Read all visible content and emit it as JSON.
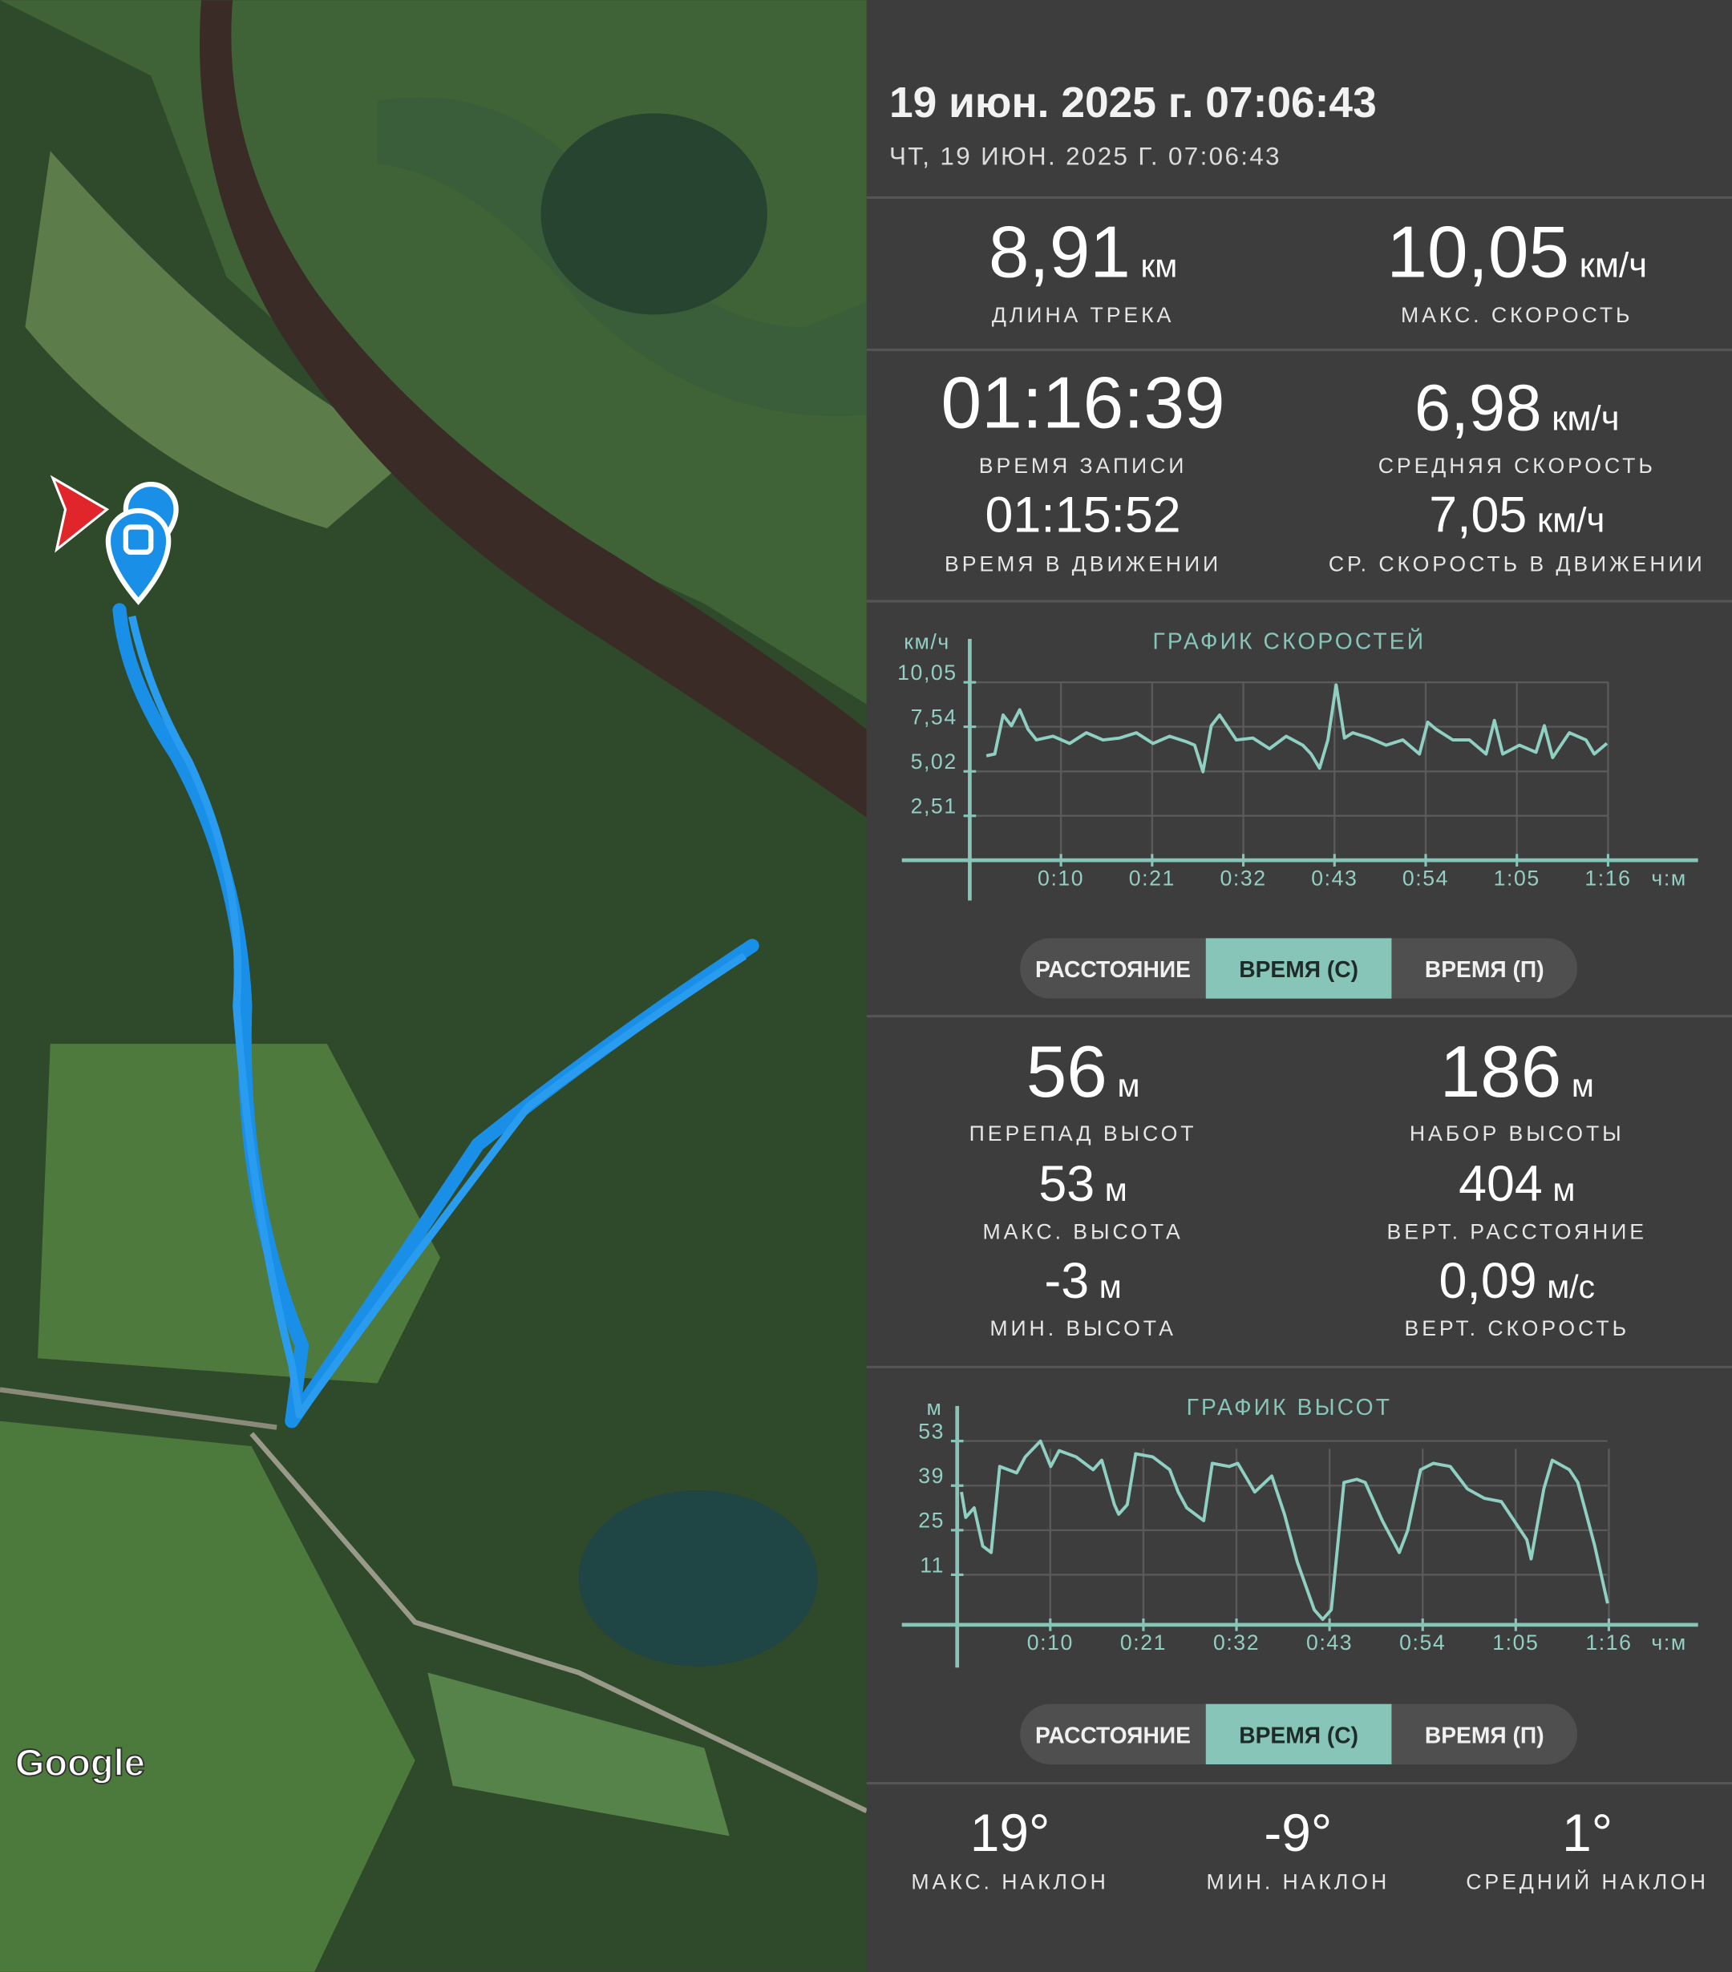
{
  "header": {
    "title": "19 июн. 2025 г. 07:06:43",
    "subtitle": "ЧТ, 19 ИЮН. 2025 Г. 07:06:43"
  },
  "map": {
    "attribution": "Google"
  },
  "track_stats": [
    {
      "value": "8,91",
      "unit": "км",
      "label": "ДЛИНА ТРЕКА"
    },
    {
      "value": "10,05",
      "unit": "км/ч",
      "label": "МАКС. СКОРОСТЬ"
    },
    {
      "value": "01:16:39",
      "label": "ВРЕМЯ ЗАПИСИ"
    },
    {
      "value": "6,98",
      "unit": "км/ч",
      "label": "СРЕДНЯЯ СКОРОСТЬ"
    },
    {
      "value": "01:15:52",
      "label": "ВРЕМЯ В ДВИЖЕНИИ"
    },
    {
      "value": "7,05",
      "unit": "км/ч",
      "label": "СР. СКОРОСТЬ В ДВИЖЕНИИ"
    }
  ],
  "speed_tabs": {
    "options": [
      "РАССТОЯНИЕ",
      "ВРЕМЯ (С)",
      "ВРЕМЯ (П)"
    ],
    "selected": 1
  },
  "elevation_stats": [
    {
      "value": "56",
      "unit": "м",
      "label": "ПЕРЕПАД ВЫСОТ"
    },
    {
      "value": "186",
      "unit": "м",
      "label": "НАБОР ВЫСОТЫ"
    },
    {
      "value": "53",
      "unit": "м",
      "label": "МАКС. ВЫСОТА"
    },
    {
      "value": "404",
      "unit": "м",
      "label": "ВЕРТ. РАССТОЯНИЕ"
    },
    {
      "value": "-3",
      "unit": "м",
      "label": "МИН. ВЫСОТА"
    },
    {
      "value": "0,09",
      "unit": "м/с",
      "label": "ВЕРТ. СКОРОСТЬ"
    }
  ],
  "elevation_tabs": {
    "options": [
      "РАССТОЯНИЕ",
      "ВРЕМЯ (С)",
      "ВРЕМЯ (П)"
    ],
    "selected": 1
  },
  "slope_stats": [
    {
      "value": "19°",
      "label": "МАКС. НАКЛОН"
    },
    {
      "value": "-9°",
      "label": "МИН. НАКЛОН"
    },
    {
      "value": "1°",
      "label": "СРЕДНИЙ НАКЛОН"
    }
  ],
  "chart_data": [
    {
      "type": "line",
      "title": "ГРАФИК СКОРОСТЕЙ",
      "y_label": "км/ч",
      "x_label": "ч:м",
      "color": "#8fd0c3",
      "xlim": [
        0,
        86.7
      ],
      "ylim": [
        0,
        12.5
      ],
      "xticks": [
        {
          "value": 10.95,
          "label": "0:10"
        },
        {
          "value": 21.9,
          "label": "0:21"
        },
        {
          "value": 32.85,
          "label": "0:32"
        },
        {
          "value": 43.8,
          "label": "0:43"
        },
        {
          "value": 54.75,
          "label": "0:54"
        },
        {
          "value": 65.7,
          "label": "1:05"
        },
        {
          "value": 76.65,
          "label": "1:16"
        }
      ],
      "yticks": [
        {
          "value": 2.51,
          "label": "2,51"
        },
        {
          "value": 5.02,
          "label": "5,02"
        },
        {
          "value": 7.54,
          "label": "7,54"
        },
        {
          "value": 10.05,
          "label": "10,05"
        }
      ],
      "x": [
        2,
        3,
        4,
        5,
        6,
        7,
        8,
        10,
        12,
        14,
        16,
        18,
        20,
        22,
        24,
        26,
        27,
        28,
        29,
        30,
        32,
        34,
        36,
        38,
        40,
        41,
        42,
        43,
        44,
        45,
        46,
        48,
        50,
        52,
        54,
        55,
        56,
        58,
        60,
        62,
        63,
        64,
        66,
        68,
        69,
        70,
        72,
        74,
        75,
        76.5
      ],
      "values": [
        5.9,
        6.0,
        8.2,
        7.6,
        8.5,
        7.4,
        6.8,
        7.0,
        6.6,
        7.2,
        6.8,
        6.9,
        7.2,
        6.6,
        7.0,
        6.7,
        6.5,
        5.0,
        7.6,
        8.2,
        6.8,
        6.9,
        6.3,
        7.0,
        6.5,
        6.0,
        5.2,
        6.8,
        9.9,
        6.9,
        7.2,
        6.9,
        6.5,
        6.8,
        6.0,
        7.8,
        7.4,
        6.8,
        6.8,
        6.0,
        7.9,
        6.0,
        6.5,
        6.1,
        7.6,
        5.8,
        7.2,
        6.8,
        6.0,
        6.6
      ]
    },
    {
      "type": "line",
      "title": "ГРАФИК ВЫСОТ",
      "y_label": "м",
      "x_label": "ч:м",
      "color": "#8fd0c3",
      "xlim": [
        0,
        86.4
      ],
      "ylim": [
        -4.7,
        64
      ],
      "xticks": [
        {
          "value": 10.95,
          "label": "0:10"
        },
        {
          "value": 21.9,
          "label": "0:21"
        },
        {
          "value": 32.85,
          "label": "0:32"
        },
        {
          "value": 43.8,
          "label": "0:43"
        },
        {
          "value": 54.75,
          "label": "0:54"
        },
        {
          "value": 65.7,
          "label": "1:05"
        },
        {
          "value": 76.65,
          "label": "1:16"
        }
      ],
      "yticks": [
        11,
        25,
        39,
        53
      ],
      "x": [
        0.5,
        1,
        2,
        3,
        4,
        5,
        7,
        8,
        9.8,
        11,
        12,
        14,
        16,
        17,
        18.5,
        19,
        20,
        21,
        23,
        25,
        26,
        27,
        29,
        30,
        32,
        33,
        35,
        37,
        38.5,
        40,
        42,
        43,
        44,
        45.5,
        47,
        48,
        50,
        51,
        52,
        53,
        54.5,
        56,
        58,
        60,
        62,
        64,
        67,
        67.5,
        69,
        70,
        72,
        73,
        74,
        75,
        76.5
      ],
      "values": [
        37,
        29,
        32,
        20,
        18,
        45,
        43,
        48,
        53,
        45,
        50,
        48,
        44,
        47,
        33,
        30,
        33,
        49,
        48,
        44,
        37,
        32,
        28,
        46,
        45,
        46,
        37,
        42,
        30,
        15,
        0,
        -3,
        0,
        40,
        41,
        40,
        28,
        23,
        18,
        25,
        44,
        46,
        45,
        38,
        35,
        34,
        22,
        16,
        38,
        47,
        44,
        40,
        30,
        20,
        2
      ]
    }
  ]
}
